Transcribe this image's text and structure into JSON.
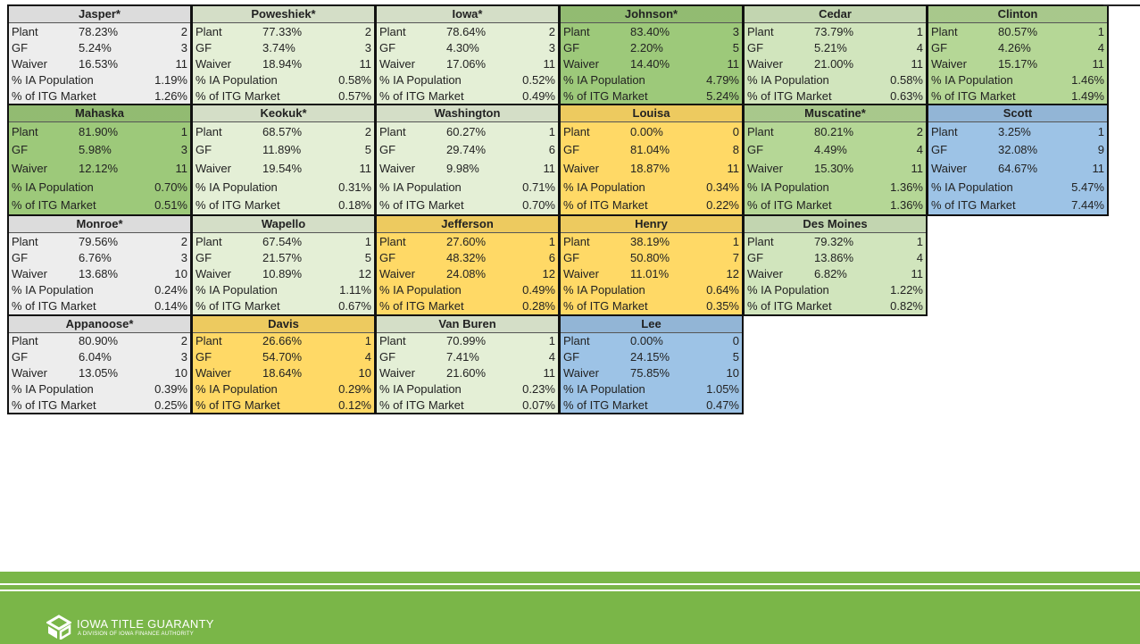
{
  "labels": [
    "Plant",
    "GF",
    "Waiver",
    "% IA Population",
    "% of ITG Market"
  ],
  "counties": [
    {
      "name": "Jasper*",
      "color": "#ededed",
      "values": [
        "78.23%",
        "5.24%",
        "16.53%",
        "1.19%",
        "1.26%"
      ],
      "ranks": [
        2,
        3,
        11
      ]
    },
    {
      "name": "Poweshiek*",
      "color": "#e4efd6",
      "values": [
        "77.33%",
        "3.74%",
        "18.94%",
        "0.58%",
        "0.57%"
      ],
      "ranks": [
        2,
        3,
        11
      ]
    },
    {
      "name": "Iowa*",
      "color": "#e4efd6",
      "values": [
        "78.64%",
        "4.30%",
        "17.06%",
        "0.52%",
        "0.49%"
      ],
      "ranks": [
        2,
        3,
        11
      ]
    },
    {
      "name": "Johnson*",
      "color": "#9dc97a",
      "values": [
        "83.40%",
        "2.20%",
        "14.40%",
        "4.79%",
        "5.24%"
      ],
      "ranks": [
        3,
        5,
        11
      ]
    },
    {
      "name": "Cedar",
      "color": "#d1e5bd",
      "values": [
        "73.79%",
        "5.21%",
        "21.00%",
        "0.58%",
        "0.63%"
      ],
      "ranks": [
        1,
        4,
        11
      ]
    },
    {
      "name": "Clinton",
      "color": "#b5d796",
      "values": [
        "80.57%",
        "4.26%",
        "15.17%",
        "1.46%",
        "1.49%"
      ],
      "ranks": [
        1,
        4,
        11
      ]
    },
    {
      "name": "Mahaska",
      "color": "#9dc97a",
      "values": [
        "81.90%",
        "5.98%",
        "12.12%",
        "0.70%",
        "0.51%"
      ],
      "ranks": [
        1,
        3,
        11
      ]
    },
    {
      "name": "Keokuk*",
      "color": "#e4efd6",
      "values": [
        "68.57%",
        "11.89%",
        "19.54%",
        "0.31%",
        "0.18%"
      ],
      "ranks": [
        2,
        5,
        11
      ]
    },
    {
      "name": "Washington",
      "color": "#e4efd6",
      "values": [
        "60.27%",
        "29.74%",
        "9.98%",
        "0.71%",
        "0.70%"
      ],
      "ranks": [
        1,
        6,
        11
      ]
    },
    {
      "name": "Louisa",
      "color": "#ffd966",
      "values": [
        "0.00%",
        "81.04%",
        "18.87%",
        "0.34%",
        "0.22%"
      ],
      "ranks": [
        0,
        8,
        11
      ]
    },
    {
      "name": "Muscatine*",
      "color": "#b5d796",
      "values": [
        "80.21%",
        "4.49%",
        "15.30%",
        "1.36%",
        "1.36%"
      ],
      "ranks": [
        2,
        4,
        11
      ]
    },
    {
      "name": "Scott",
      "color": "#9dc3e6",
      "values": [
        "3.25%",
        "32.08%",
        "64.67%",
        "5.47%",
        "7.44%"
      ],
      "ranks": [
        1,
        9,
        11
      ]
    },
    {
      "name": "Monroe*",
      "color": "#ededed",
      "values": [
        "79.56%",
        "6.76%",
        "13.68%",
        "0.24%",
        "0.14%"
      ],
      "ranks": [
        2,
        3,
        10
      ]
    },
    {
      "name": "Wapello",
      "color": "#e4efd6",
      "values": [
        "67.54%",
        "21.57%",
        "10.89%",
        "1.11%",
        "0.67%"
      ],
      "ranks": [
        1,
        5,
        12
      ]
    },
    {
      "name": "Jefferson",
      "color": "#ffd966",
      "values": [
        "27.60%",
        "48.32%",
        "24.08%",
        "0.49%",
        "0.28%"
      ],
      "ranks": [
        1,
        6,
        12
      ]
    },
    {
      "name": "Henry",
      "color": "#ffd966",
      "values": [
        "38.19%",
        "50.80%",
        "11.01%",
        "0.64%",
        "0.35%"
      ],
      "ranks": [
        1,
        7,
        12
      ]
    },
    {
      "name": "Des Moines",
      "color": "#d1e5bd",
      "values": [
        "79.32%",
        "13.86%",
        "6.82%",
        "1.22%",
        "0.82%"
      ],
      "ranks": [
        1,
        4,
        11
      ]
    },
    {
      "name": "Appanoose*",
      "color": "#ededed",
      "values": [
        "80.90%",
        "6.04%",
        "13.05%",
        "0.39%",
        "0.25%"
      ],
      "ranks": [
        2,
        3,
        10
      ]
    },
    {
      "name": "Davis",
      "color": "#ffd966",
      "values": [
        "26.66%",
        "54.70%",
        "18.64%",
        "0.29%",
        "0.12%"
      ],
      "ranks": [
        1,
        4,
        10
      ]
    },
    {
      "name": "Van Buren",
      "color": "#e4efd6",
      "values": [
        "70.99%",
        "7.41%",
        "21.60%",
        "0.23%",
        "0.07%"
      ],
      "ranks": [
        1,
        4,
        11
      ]
    },
    {
      "name": "Lee",
      "color": "#9dc3e6",
      "values": [
        "0.00%",
        "24.15%",
        "75.85%",
        "1.05%",
        "0.47%"
      ],
      "ranks": [
        0,
        5,
        10
      ]
    }
  ],
  "footer": {
    "title": "IOWA TITLE GUARANTY",
    "subtitle": "A DIVISION OF IOWA FINANCE AUTHORITY"
  }
}
